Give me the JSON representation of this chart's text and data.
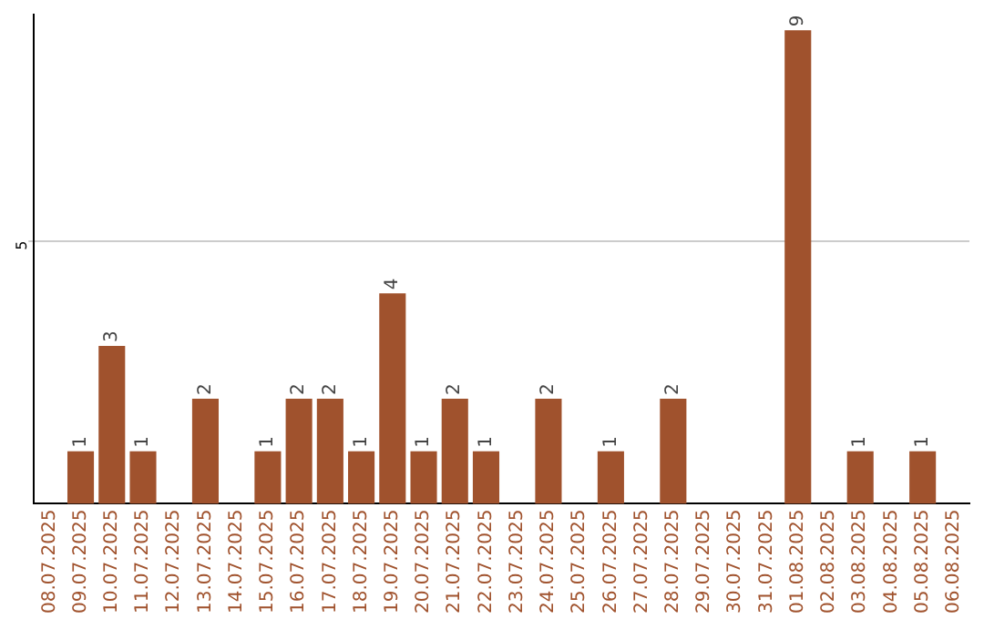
{
  "chart_data": {
    "type": "bar",
    "categories": [
      "08.07.2025",
      "09.07.2025",
      "10.07.2025",
      "11.07.2025",
      "12.07.2025",
      "13.07.2025",
      "14.07.2025",
      "15.07.2025",
      "16.07.2025",
      "17.07.2025",
      "18.07.2025",
      "19.07.2025",
      "20.07.2025",
      "21.07.2025",
      "22.07.2025",
      "23.07.2025",
      "24.07.2025",
      "25.07.2025",
      "26.07.2025",
      "27.07.2025",
      "28.07.2025",
      "29.07.2025",
      "30.07.2025",
      "31.07.2025",
      "01.08.2025",
      "02.08.2025",
      "03.08.2025",
      "04.08.2025",
      "05.08.2025",
      "06.08.2025"
    ],
    "values": [
      0,
      1,
      3,
      1,
      0,
      2,
      0,
      1,
      2,
      2,
      1,
      4,
      1,
      2,
      1,
      0,
      2,
      0,
      1,
      0,
      2,
      0,
      0,
      0,
      9,
      0,
      1,
      0,
      1,
      0
    ],
    "value_labels": [
      null,
      "1",
      "3",
      "1",
      null,
      "2",
      null,
      "1",
      "2",
      "2",
      "1",
      "4",
      "1",
      "2",
      "1",
      null,
      "2",
      null,
      "1",
      null,
      "2",
      null,
      null,
      null,
      "9",
      null,
      "1",
      null,
      "1",
      null
    ],
    "color": "#a0522d",
    "ylim": [
      0,
      9.3
    ],
    "yticks": [
      5
    ],
    "grid": "y"
  }
}
